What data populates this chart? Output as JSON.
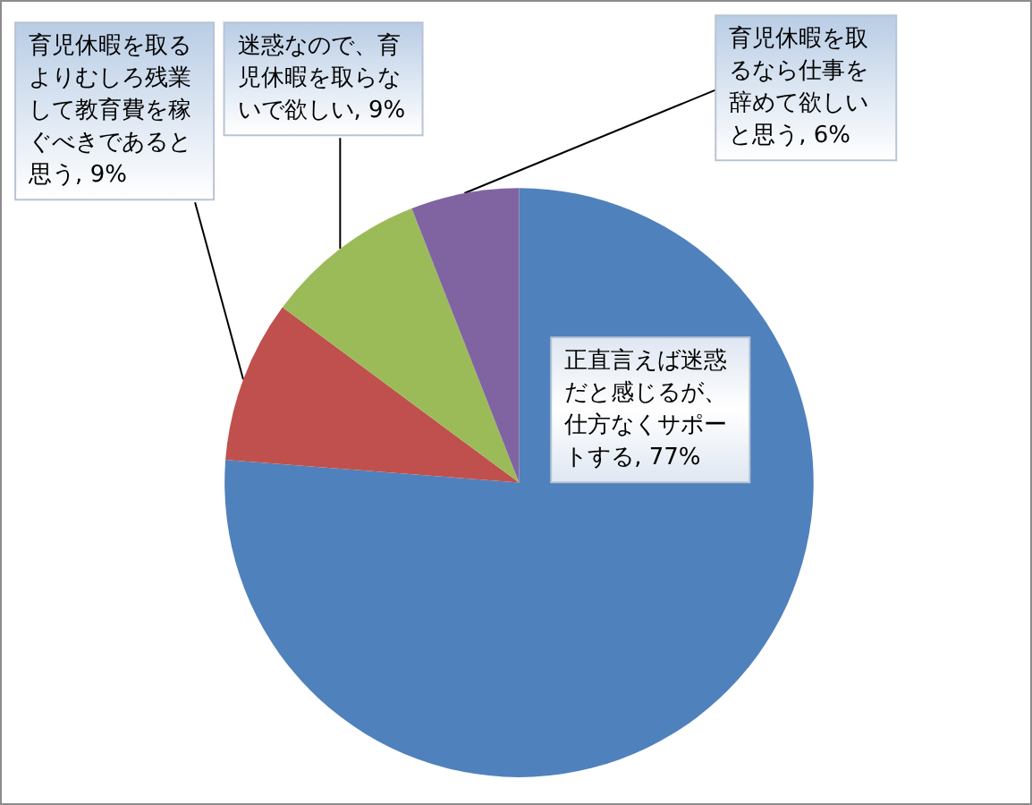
{
  "chart_data": {
    "type": "pie",
    "categories": [
      "正直言えば迷惑だと感じるが、仕方なくサポートする",
      "育児休暇を取るよりむしろ残業して教育費を稼ぐべきであると思う",
      "迷惑なので、育児休暇を取らないで欲しい",
      "育児休暇を取るなら仕事を辞めて欲しいと思う"
    ],
    "values": [
      77,
      9,
      9,
      6
    ],
    "colors": [
      "#4f81bd",
      "#c0504d",
      "#9bbb59",
      "#8064a2"
    ],
    "value_labels": [
      "77%",
      "9%",
      "9%",
      "6%"
    ]
  }
}
